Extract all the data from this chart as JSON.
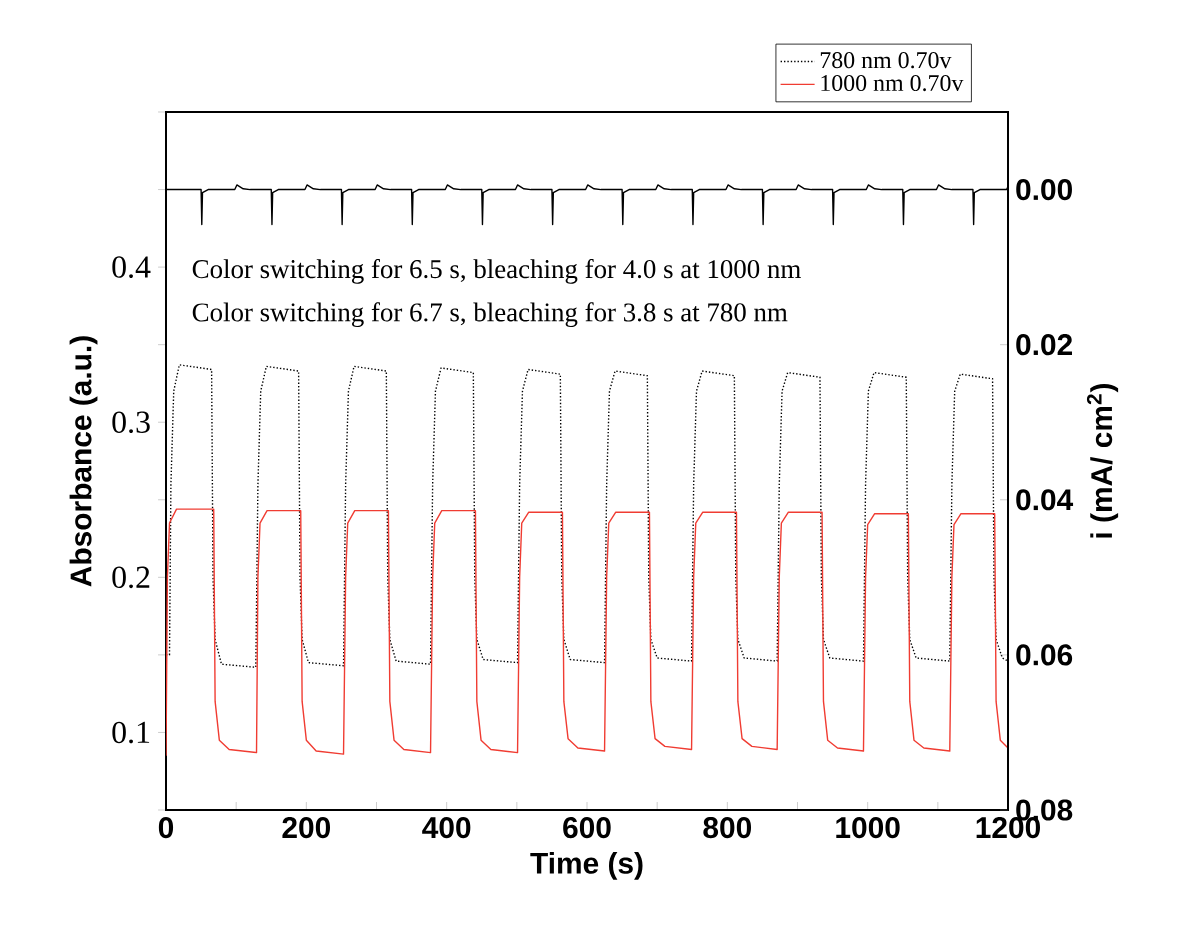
{
  "chart_data": {
    "type": "line",
    "xlabel": "Time (s)",
    "ylabel": "Absorbance (a.u.)",
    "y2label": "i (mA/ cm$^{2}$)",
    "xlim": [
      0,
      1200
    ],
    "xticks": [
      0,
      {
        "value": 100,
        "label": null
      },
      200,
      {
        "value": 300,
        "label": null
      },
      400,
      {
        "value": 500,
        "label": null
      },
      600,
      {
        "value": 700,
        "label": null
      },
      800,
      {
        "value": 900,
        "label": null
      },
      1000,
      {
        "value": 1100,
        "label": null
      },
      1200
    ],
    "ylim": [
      0.05,
      0.5
    ],
    "yticks": [
      {
        "value": 0.05,
        "label": null
      },
      0.1,
      {
        "value": 0.15,
        "label": null
      },
      0.2,
      {
        "value": 0.25,
        "label": null
      },
      0.3,
      {
        "value": 0.35,
        "label": null
      },
      0.4,
      {
        "value": 0.45,
        "label": null
      },
      {
        "value": 0.5,
        "label": null
      }
    ],
    "y2lim": [
      0.08,
      -0.01
    ],
    "y2ticks": [
      {
        "value": 0,
        "label": "0.00"
      },
      {
        "value": 0.02,
        "label": "0.02"
      },
      {
        "value": 0.04,
        "label": "0.04"
      },
      {
        "value": 0.06,
        "label": "0.06"
      },
      {
        "value": 0.08,
        "label": "0.08"
      }
    ],
    "legend": "top right",
    "annotations": [
      "Color switching for 6.5 s, bleaching for 4.0 s at 1000 nm",
      "Color switching for 6.7 s, bleaching for 3.8 s at 780 nm"
    ],
    "series": [
      {
        "name": "780 nm 0.70v",
        "color": "#000000",
        "line_style": "dotted",
        "x": [
          0,
          5,
          7,
          11,
          19,
          65,
          67,
          70,
          79,
          128,
          131,
          135,
          143,
          189,
          191,
          194,
          203,
          253,
          256,
          260,
          268,
          314,
          316,
          319,
          328,
          377,
          380,
          384,
          392,
          438,
          440,
          443,
          452,
          501,
          504,
          508,
          516,
          562,
          564,
          567,
          576,
          625,
          628,
          632,
          640,
          686,
          688,
          691,
          700,
          749,
          752,
          756,
          764,
          810,
          812,
          815,
          824,
          871,
          874,
          878,
          886,
          932,
          934,
          937,
          946,
          994,
          997,
          1001,
          1009,
          1055,
          1057,
          1060,
          1069,
          1117,
          1120,
          1124,
          1132,
          1178,
          1180,
          1183,
          1192,
          1200
        ],
        "values": [
          0.15,
          0.15,
          0.26,
          0.32,
          0.337,
          0.334,
          0.2,
          0.16,
          0.144,
          0.142,
          0.26,
          0.32,
          0.336,
          0.333,
          0.2,
          0.16,
          0.145,
          0.143,
          0.26,
          0.32,
          0.336,
          0.333,
          0.2,
          0.16,
          0.146,
          0.144,
          0.26,
          0.32,
          0.335,
          0.332,
          0.2,
          0.16,
          0.147,
          0.145,
          0.26,
          0.32,
          0.334,
          0.331,
          0.2,
          0.16,
          0.147,
          0.145,
          0.26,
          0.32,
          0.333,
          0.33,
          0.2,
          0.16,
          0.148,
          0.146,
          0.26,
          0.32,
          0.333,
          0.33,
          0.2,
          0.16,
          0.148,
          0.146,
          0.26,
          0.32,
          0.332,
          0.329,
          0.2,
          0.16,
          0.148,
          0.146,
          0.26,
          0.32,
          0.332,
          0.329,
          0.2,
          0.16,
          0.148,
          0.146,
          0.26,
          0.32,
          0.331,
          0.328,
          0.2,
          0.16,
          0.148,
          0.146
        ]
      },
      {
        "name": "1000 nm 0.70v",
        "color": "#f03c32",
        "line_style": "solid",
        "x": [
          0,
          2,
          5,
          15,
          68,
          70,
          76,
          90,
          129,
          131,
          134,
          144,
          192,
          194,
          200,
          214,
          253,
          256,
          259,
          269,
          317,
          319,
          325,
          339,
          377,
          380,
          383,
          393,
          441,
          443,
          449,
          463,
          501,
          504,
          507,
          517,
          565,
          567,
          573,
          587,
          625,
          628,
          631,
          641,
          689,
          691,
          697,
          711,
          749,
          752,
          755,
          765,
          813,
          815,
          821,
          835,
          871,
          874,
          877,
          887,
          935,
          937,
          943,
          957,
          994,
          997,
          1000,
          1010,
          1058,
          1060,
          1066,
          1080,
          1117,
          1120,
          1123,
          1133,
          1181,
          1183,
          1189,
          1200
        ],
        "values": [
          0.085,
          0.2,
          0.235,
          0.244,
          0.244,
          0.12,
          0.095,
          0.089,
          0.087,
          0.2,
          0.235,
          0.243,
          0.243,
          0.12,
          0.095,
          0.088,
          0.086,
          0.2,
          0.235,
          0.243,
          0.243,
          0.12,
          0.095,
          0.089,
          0.087,
          0.2,
          0.235,
          0.243,
          0.243,
          0.12,
          0.095,
          0.089,
          0.087,
          0.2,
          0.235,
          0.242,
          0.242,
          0.12,
          0.096,
          0.09,
          0.088,
          0.2,
          0.235,
          0.242,
          0.242,
          0.12,
          0.096,
          0.091,
          0.089,
          0.2,
          0.235,
          0.242,
          0.242,
          0.12,
          0.096,
          0.091,
          0.089,
          0.2,
          0.235,
          0.242,
          0.242,
          0.12,
          0.095,
          0.09,
          0.088,
          0.2,
          0.234,
          0.241,
          0.241,
          0.12,
          0.095,
          0.09,
          0.088,
          0.2,
          0.234,
          0.241,
          0.241,
          0.12,
          0.095,
          0.09
        ]
      },
      {
        "color": "#000000",
        "line_style": "solid",
        "axis": "y2",
        "x": [
          0,
          50,
          51,
          52,
          60,
          98,
          101,
          110,
          120,
          150,
          151,
          152,
          160,
          198,
          201,
          210,
          220,
          250,
          251,
          252,
          260,
          298,
          301,
          310,
          320,
          350,
          351,
          352,
          360,
          398,
          401,
          410,
          420,
          450,
          451,
          452,
          460,
          498,
          501,
          510,
          520,
          550,
          551,
          552,
          560,
          598,
          601,
          610,
          620,
          650,
          651,
          652,
          660,
          698,
          701,
          710,
          720,
          750,
          751,
          752,
          760,
          798,
          801,
          810,
          820,
          850,
          851,
          852,
          860,
          898,
          901,
          910,
          920,
          950,
          951,
          952,
          960,
          998,
          1001,
          1010,
          1020,
          1050,
          1051,
          1052,
          1060,
          1098,
          1101,
          1110,
          1120,
          1150,
          1151,
          1152,
          1160,
          1198,
          1200
        ],
        "values": [
          0,
          0,
          0.0045,
          0.0004,
          0,
          0,
          -0.0006,
          -0.0001,
          0,
          0,
          0.0045,
          0.0004,
          0,
          0,
          -0.0006,
          -0.0001,
          0,
          0,
          0.0045,
          0.0004,
          0,
          0,
          -0.0006,
          -0.0001,
          0,
          0,
          0.0045,
          0.0004,
          0,
          0,
          -0.0006,
          -0.0001,
          0,
          0,
          0.0045,
          0.0004,
          0,
          0,
          -0.0006,
          -0.0001,
          0,
          0,
          0.0045,
          0.0004,
          0,
          0,
          -0.0006,
          -0.0001,
          0,
          0,
          0.0045,
          0.0004,
          0,
          0,
          -0.0006,
          -0.0001,
          0,
          0,
          0.0045,
          0.0004,
          0,
          0,
          -0.0006,
          -0.0001,
          0,
          0,
          0.0045,
          0.0004,
          0,
          0,
          -0.0006,
          -0.0001,
          0,
          0,
          0.0045,
          0.0004,
          0,
          0,
          -0.0006,
          -0.0001,
          0,
          0,
          0.0045,
          0.0004,
          0,
          0,
          -0.0006,
          -0.0001,
          0,
          0,
          0.0045,
          0.0004,
          0,
          0,
          -0.0004
        ]
      }
    ]
  }
}
